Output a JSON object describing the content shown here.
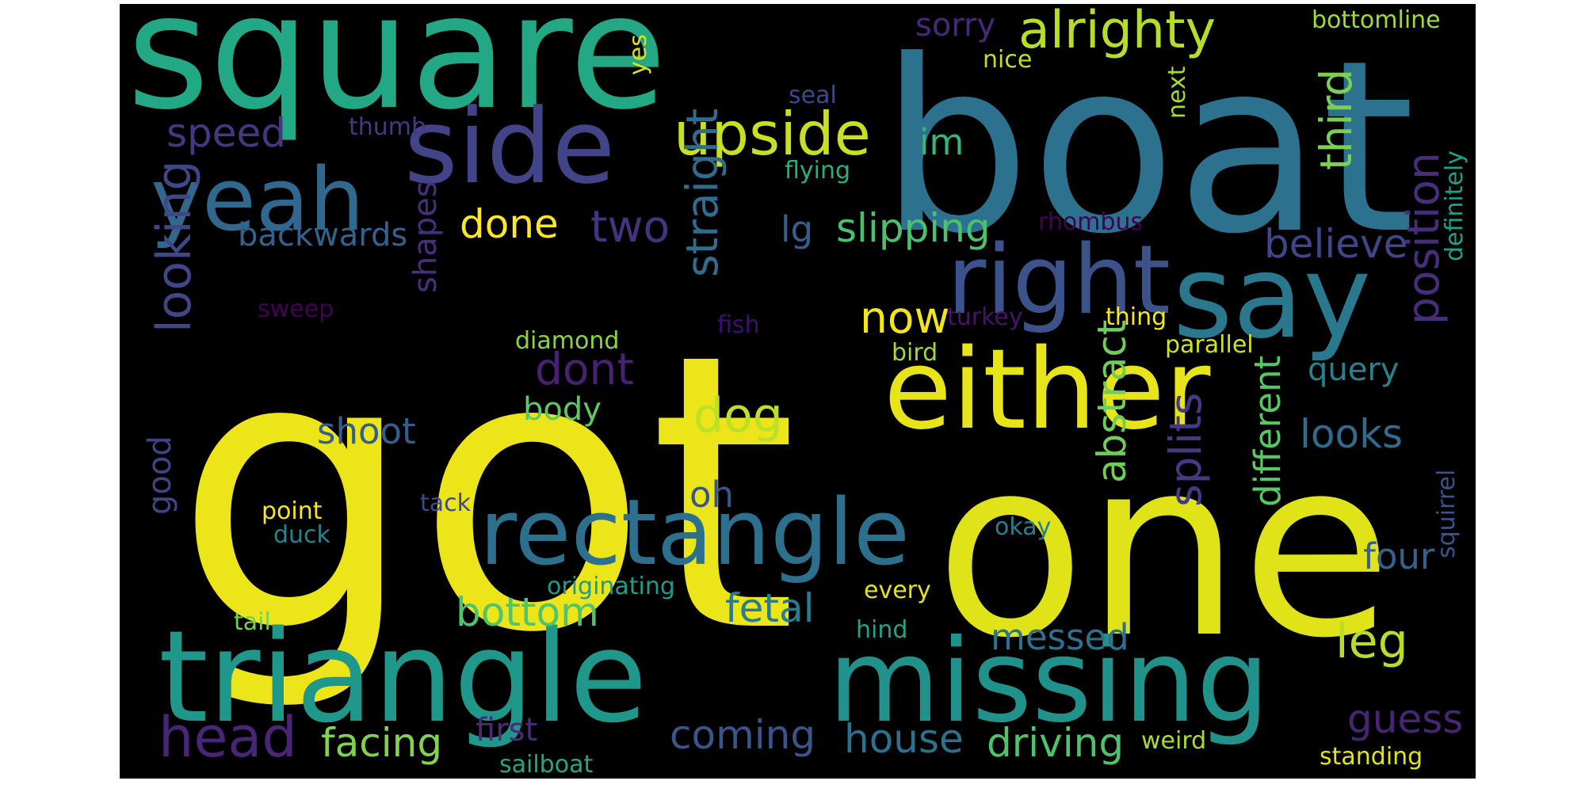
{
  "words": [
    {
      "text": "square",
      "color": "#22a884"
    },
    {
      "text": "boat",
      "color": "#2c728e"
    },
    {
      "text": "got",
      "color": "#ebe51a"
    },
    {
      "text": "one",
      "color": "#dfe318"
    },
    {
      "text": "side",
      "color": "#414487"
    },
    {
      "text": "yeah",
      "color": "#31688e"
    },
    {
      "text": "upside",
      "color": "#c8e020"
    },
    {
      "text": "alrighty",
      "color": "#b5de2b"
    },
    {
      "text": "right",
      "color": "#3b528b"
    },
    {
      "text": "say",
      "color": "#2a788e"
    },
    {
      "text": "either",
      "color": "#e7e419"
    },
    {
      "text": "rectangle",
      "color": "#2d708e"
    },
    {
      "text": "triangle",
      "color": "#1f988b"
    },
    {
      "text": "missing",
      "color": "#21918c"
    },
    {
      "text": "sorry",
      "color": "#482878"
    },
    {
      "text": "bottomline",
      "color": "#a0da39"
    },
    {
      "text": "nice",
      "color": "#c2df23"
    },
    {
      "text": "yes",
      "color": "#d8e219"
    },
    {
      "text": "seal",
      "color": "#3e4989"
    },
    {
      "text": "speed",
      "color": "#453781"
    },
    {
      "text": "thumb",
      "color": "#443983"
    },
    {
      "text": "im",
      "color": "#35b779"
    },
    {
      "text": "next",
      "color": "#a5db36"
    },
    {
      "text": "flying",
      "color": "#29af7f"
    },
    {
      "text": "third",
      "color": "#7ad151"
    },
    {
      "text": "done",
      "color": "#fde725"
    },
    {
      "text": "two",
      "color": "#46327e"
    },
    {
      "text": "lg",
      "color": "#355f8d"
    },
    {
      "text": "slipping",
      "color": "#4ac16d"
    },
    {
      "text": "rhombus",
      "color": "#440154"
    },
    {
      "text": "backwards",
      "color": "#33638d"
    },
    {
      "text": "believe",
      "color": "#404688"
    },
    {
      "text": "definitely",
      "color": "#1fa187"
    },
    {
      "text": "looking",
      "color": "#3f4788"
    },
    {
      "text": "straight",
      "color": "#2f6c8e"
    },
    {
      "text": "position",
      "color": "#472d7b"
    },
    {
      "text": "shapes",
      "color": "#46307e"
    },
    {
      "text": "now",
      "color": "#f1e51d"
    },
    {
      "text": "sweep",
      "color": "#440154"
    },
    {
      "text": "fish",
      "color": "#3b0f70"
    },
    {
      "text": "turkey",
      "color": "#471365"
    },
    {
      "text": "thing",
      "color": "#f6e620"
    },
    {
      "text": "diamond",
      "color": "#86d549"
    },
    {
      "text": "bird",
      "color": "#9fda3a"
    },
    {
      "text": "parallel",
      "color": "#d2e21b"
    },
    {
      "text": "dont",
      "color": "#482173"
    },
    {
      "text": "dog",
      "color": "#bddf26"
    },
    {
      "text": "query",
      "color": "#26828e"
    },
    {
      "text": "shoot",
      "color": "#355e8d"
    },
    {
      "text": "body",
      "color": "#5ec962"
    },
    {
      "text": "looks",
      "color": "#306a8e"
    },
    {
      "text": "oh",
      "color": "#39568c"
    },
    {
      "text": "abstract",
      "color": "#6ece58"
    },
    {
      "text": "different",
      "color": "#58c765"
    },
    {
      "text": "good",
      "color": "#414487"
    },
    {
      "text": "point",
      "color": "#f8e621"
    },
    {
      "text": "tack",
      "color": "#3e4a89"
    },
    {
      "text": "duck",
      "color": "#25848e"
    },
    {
      "text": "okay",
      "color": "#277f8e"
    },
    {
      "text": "splits",
      "color": "#443a83"
    },
    {
      "text": "four",
      "color": "#33638d"
    },
    {
      "text": "originating",
      "color": "#1e9b8a"
    },
    {
      "text": "every",
      "color": "#e5e419"
    },
    {
      "text": "bottom",
      "color": "#50c46a"
    },
    {
      "text": "fetal",
      "color": "#287c8e"
    },
    {
      "text": "leg",
      "color": "#b5de2b"
    },
    {
      "text": "tail",
      "color": "#7ad151"
    },
    {
      "text": "hind",
      "color": "#20a386"
    },
    {
      "text": "messed",
      "color": "#2c718e"
    },
    {
      "text": "squirrel",
      "color": "#3b528b"
    },
    {
      "text": "head",
      "color": "#482576"
    },
    {
      "text": "facing",
      "color": "#7fd34e"
    },
    {
      "text": "first",
      "color": "#472c7a"
    },
    {
      "text": "coming",
      "color": "#3a548c"
    },
    {
      "text": "house",
      "color": "#2d708e"
    },
    {
      "text": "driving",
      "color": "#4ec36b"
    },
    {
      "text": "guess",
      "color": "#482475"
    },
    {
      "text": "weird",
      "color": "#addc30"
    },
    {
      "text": "sailboat",
      "color": "#22a785"
    },
    {
      "text": "standing",
      "color": "#e2e418"
    }
  ]
}
